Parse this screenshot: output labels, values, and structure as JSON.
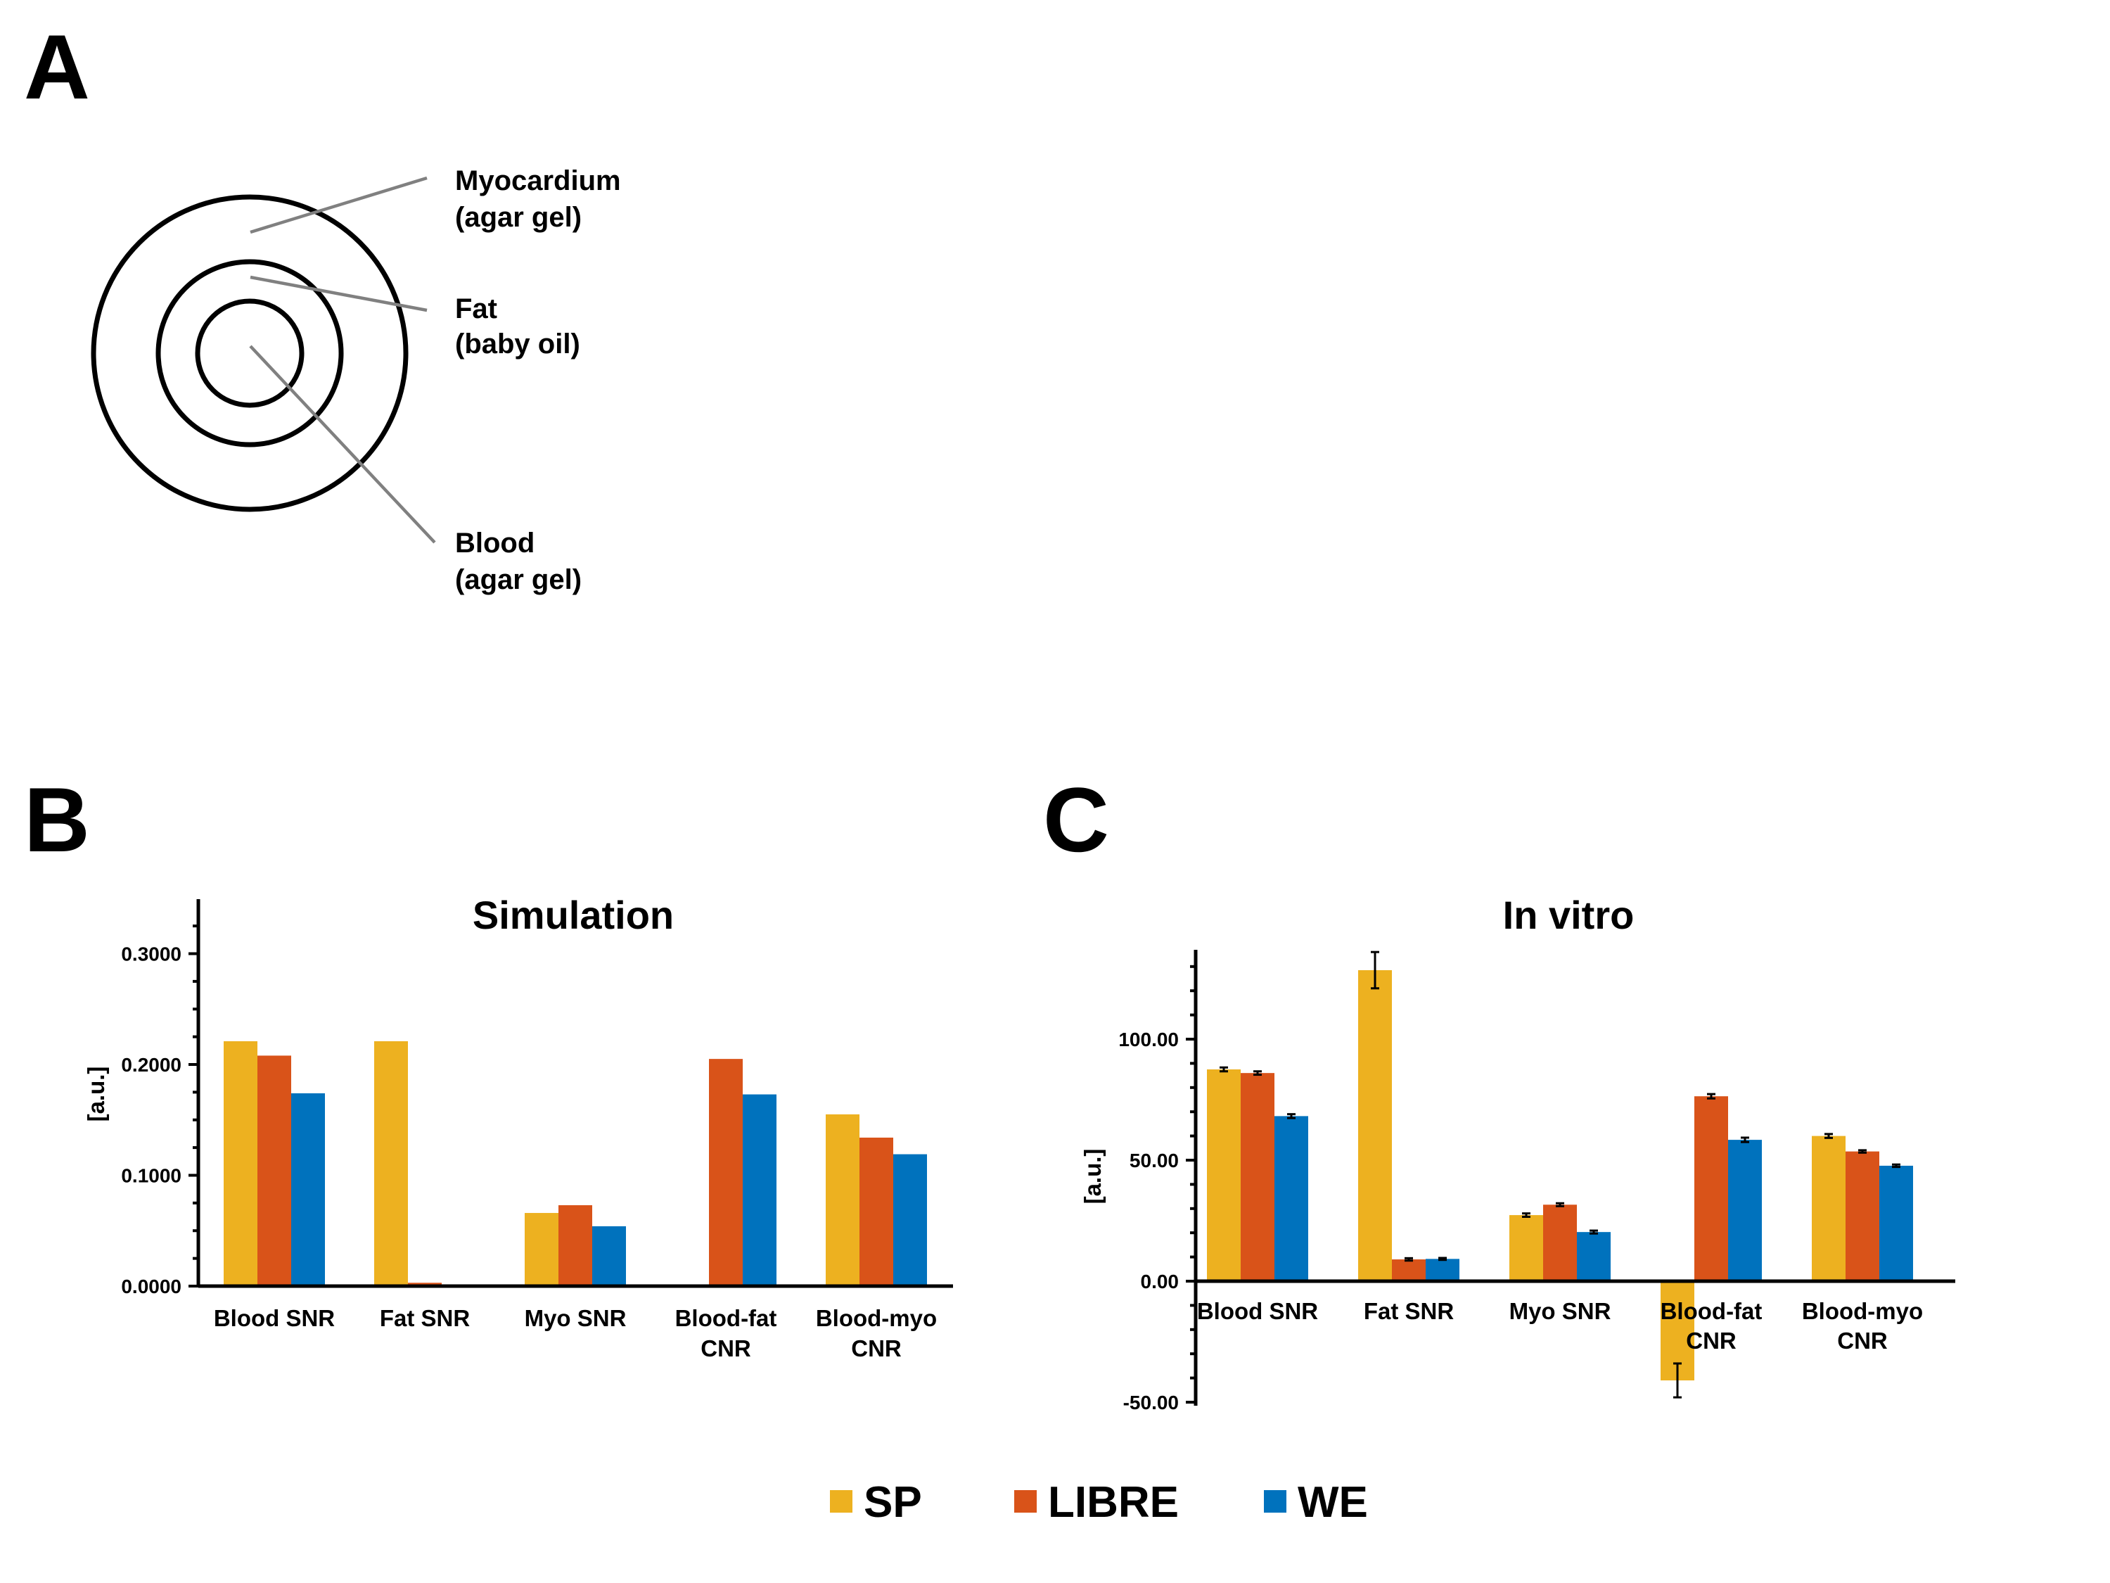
{
  "panels": {
    "a": {
      "letter": "A",
      "labels": {
        "myocardium": [
          "Myocardium",
          "(agar gel)"
        ],
        "fat": [
          "Fat",
          "(baby oil)"
        ],
        "blood": [
          "Blood",
          "(agar gel)"
        ]
      }
    },
    "b": {
      "letter": "B"
    },
    "c": {
      "letter": "C"
    }
  },
  "colors": {
    "SP": "#EDB120",
    "LIBRE": "#D95319",
    "WE": "#0072BD"
  },
  "chart_data": [
    {
      "id": "B",
      "type": "bar",
      "title": "Simulation",
      "ylabel": "[a.u.]",
      "xlabel": "",
      "ylim": [
        0,
        0.35
      ],
      "yticks": [
        0,
        0.1,
        0.2,
        0.3
      ],
      "ytick_labels": [
        "0.0000",
        "0.1000",
        "0.2000",
        "0.3000"
      ],
      "categories": [
        [
          "Blood SNR"
        ],
        [
          "Fat SNR"
        ],
        [
          "Myo SNR"
        ],
        [
          "Blood-fat",
          "CNR"
        ],
        [
          "Blood-myo",
          "CNR"
        ]
      ],
      "series": [
        {
          "name": "SP",
          "values": [
            0.221,
            0.221,
            0.066,
            0.0,
            0.155
          ]
        },
        {
          "name": "LIBRE",
          "values": [
            0.208,
            0.003,
            0.073,
            0.205,
            0.134
          ]
        },
        {
          "name": "WE",
          "values": [
            0.174,
            0.0,
            0.054,
            0.173,
            0.119
          ]
        }
      ]
    },
    {
      "id": "C",
      "type": "bar",
      "title": "In vitro",
      "ylabel": "[a.u.]",
      "xlabel": "",
      "ylim": [
        -50,
        137
      ],
      "yticks": [
        -50,
        0,
        50,
        100
      ],
      "ytick_labels": [
        "-50.00",
        "0.00",
        "50.00",
        "100.00"
      ],
      "categories": [
        [
          "Blood SNR"
        ],
        [
          "Fat SNR"
        ],
        [
          "Myo SNR"
        ],
        [
          "Blood-fat",
          "CNR"
        ],
        [
          "Blood-myo",
          "CNR"
        ]
      ],
      "series": [
        {
          "name": "SP",
          "values": [
            87.5,
            128.5,
            27.3,
            -41.0,
            60.0
          ],
          "errors": [
            0.8,
            7.5,
            0.7,
            7.0,
            0.8
          ]
        },
        {
          "name": "LIBRE",
          "values": [
            86.0,
            9.0,
            31.6,
            76.4,
            53.6
          ],
          "errors": [
            0.7,
            0.5,
            0.6,
            0.9,
            0.5
          ]
        },
        {
          "name": "WE",
          "values": [
            68.2,
            9.2,
            20.3,
            58.4,
            47.7
          ],
          "errors": [
            0.8,
            0.4,
            0.6,
            0.9,
            0.5
          ]
        }
      ]
    }
  ],
  "legend": {
    "items": [
      {
        "label": "SP",
        "color_key": "SP"
      },
      {
        "label": "LIBRE",
        "color_key": "LIBRE"
      },
      {
        "label": "WE",
        "color_key": "WE"
      }
    ]
  }
}
